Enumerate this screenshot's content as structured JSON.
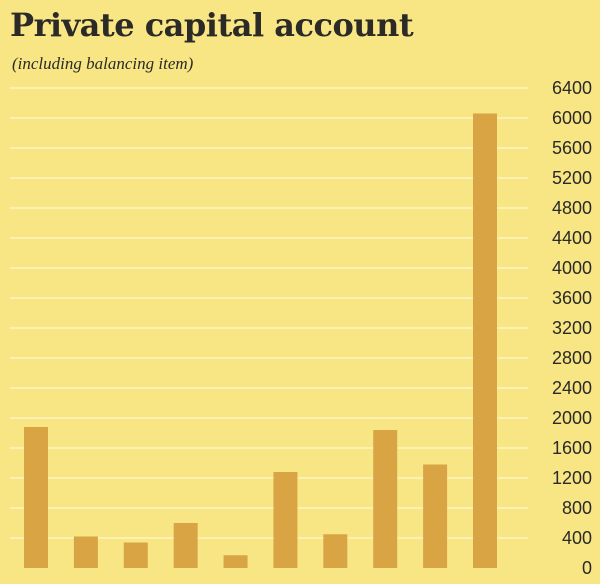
{
  "title": "Private capital account",
  "subtitle": "(including balancing item)",
  "colors": {
    "background": "#f8e685",
    "bar": "#d9a444",
    "gridline": "#fdf6cf",
    "text": "#2b2a26"
  },
  "chart_data": {
    "type": "bar",
    "title": "Private capital account",
    "subtitle": "(including balancing item)",
    "xlabel": "",
    "ylabel": "",
    "categories": [
      "",
      "",
      "",
      "",
      "",
      "",
      "",
      "",
      "",
      ""
    ],
    "values": [
      1880,
      420,
      340,
      600,
      170,
      1280,
      450,
      1840,
      1380,
      6060
    ],
    "ylim": [
      0,
      6400
    ],
    "yticks": [
      0,
      400,
      800,
      1200,
      1600,
      2000,
      2400,
      2800,
      3200,
      3600,
      4000,
      4400,
      4800,
      5200,
      5600,
      6000,
      6400
    ],
    "ytick_labels": [
      "0",
      "400",
      "800",
      "1200",
      "1600",
      "2000",
      "2400",
      "2800",
      "3200",
      "3600",
      "4000",
      "4400",
      "4800",
      "5200",
      "5600",
      "6000",
      "6400"
    ],
    "axis_side": "right",
    "grid": true
  }
}
